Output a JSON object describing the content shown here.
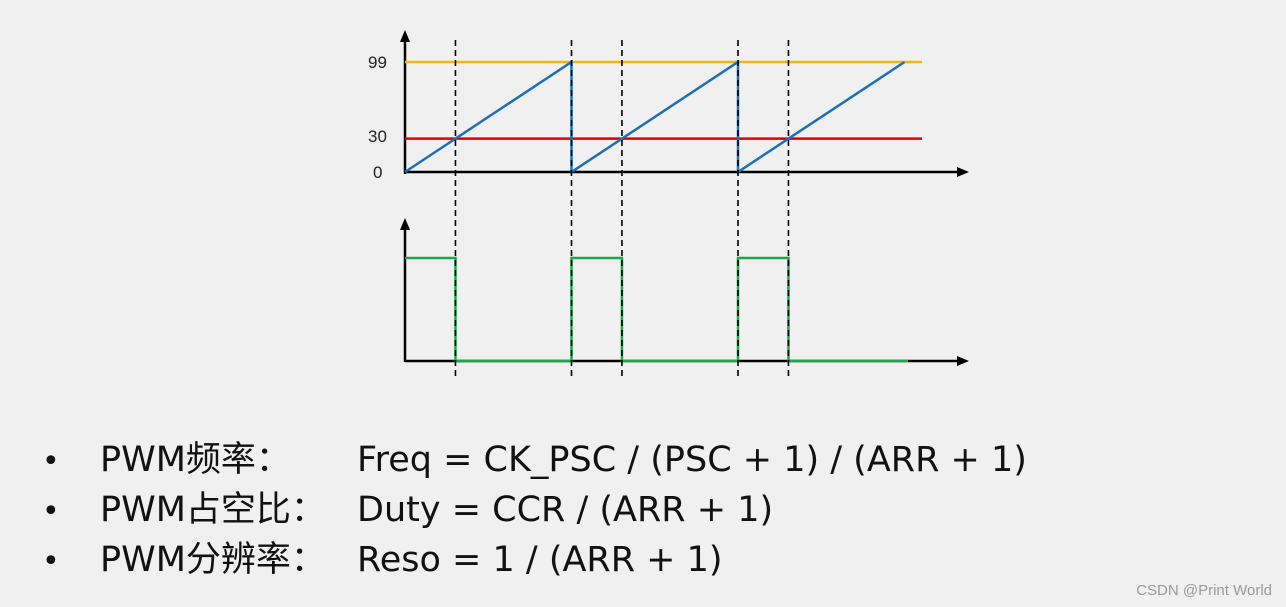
{
  "diagram": {
    "top_plot": {
      "y_ticks": [
        "99",
        "0"
      ],
      "compare_label": "30",
      "arr": 99,
      "ccr": 30,
      "periods": 3,
      "colors": {
        "counter": "#1f6fb5",
        "arr_line": "#f5b800",
        "ccr_line": "#e00000",
        "axis": "#000000"
      }
    },
    "bottom_plot": {
      "pwm_color": "#1aa84a"
    }
  },
  "bullets": [
    {
      "term": "PWM频率：",
      "formula": "Freq = CK_PSC / (PSC + 1) / (ARR + 1)"
    },
    {
      "term": "PWM占空比：",
      "formula": "Duty = CCR / (ARR + 1)"
    },
    {
      "term": "PWM分辨率：",
      "formula": "Reso = 1 / (ARR + 1)"
    }
  ],
  "bullet_symbol": "•",
  "watermark": "CSDN @Print World"
}
